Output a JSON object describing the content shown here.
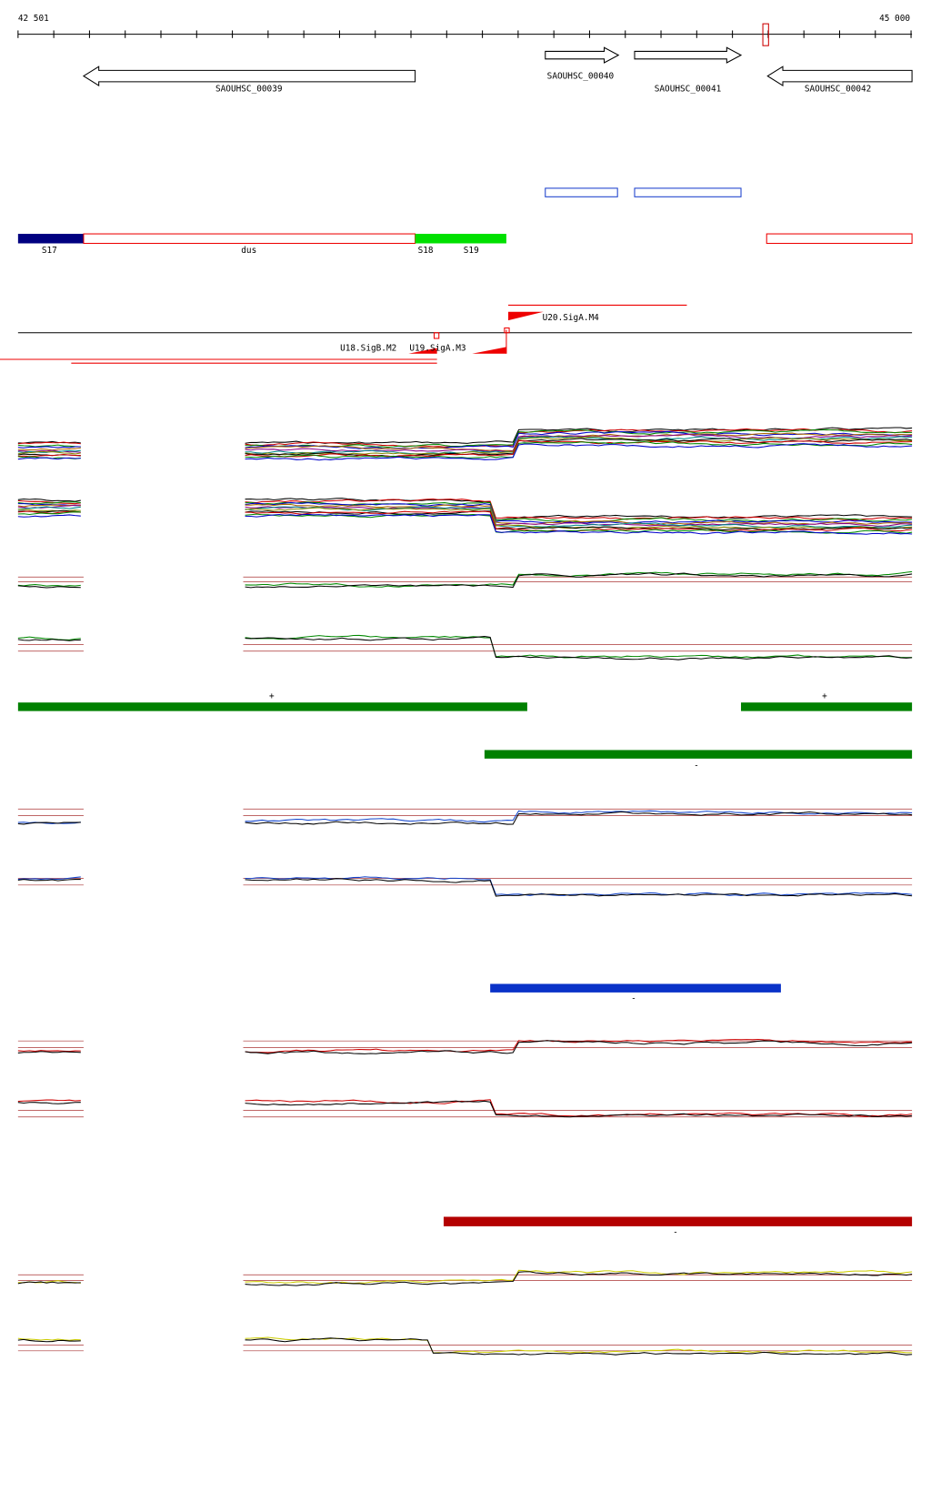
{
  "ruler": {
    "start": "42 501",
    "end": "45 000"
  },
  "genes": [
    {
      "label": "SAOUHSC_00039"
    },
    {
      "label": "SAOUHSC_00040"
    },
    {
      "label": "SAOUHSC_00041"
    },
    {
      "label": "SAOUHSC_00042"
    }
  ],
  "segments": [
    {
      "label": "S17"
    },
    {
      "label": "dus"
    },
    {
      "label": "S18"
    },
    {
      "label": "S19"
    }
  ],
  "promoters": [
    {
      "label": "U18.SigB.M2"
    },
    {
      "label": "U19.SigA.M3"
    },
    {
      "label": "U20.SigA.M4"
    }
  ],
  "strands": [
    "+",
    "+",
    "-",
    "-",
    "-"
  ]
}
